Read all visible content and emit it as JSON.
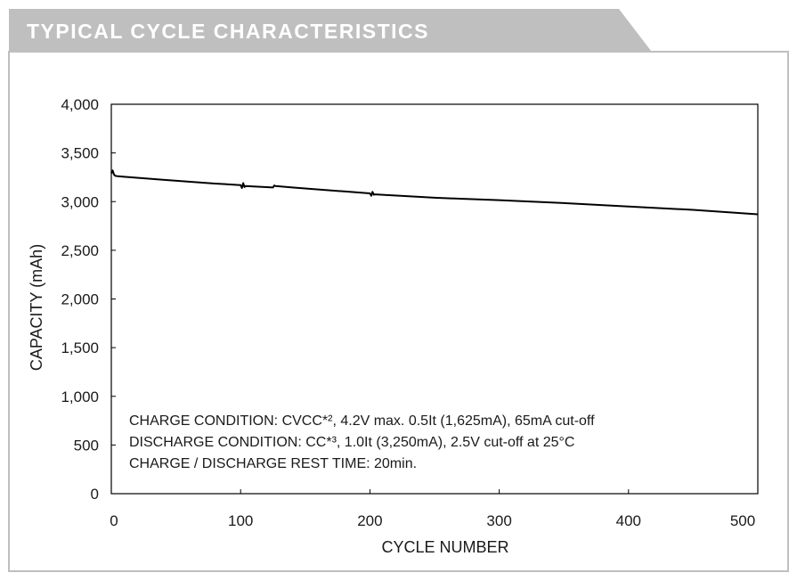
{
  "header": {
    "title": "TYPICAL CYCLE CHARACTERISTICS"
  },
  "colors": {
    "banner": "#bfbfbf",
    "frame": "#bfbfbf",
    "line": "#000000",
    "text": "#1a1a1a"
  },
  "notes": {
    "line1": "CHARGE CONDITION: CVCC*², 4.2V max. 0.5It (1,625mA), 65mA cut-off",
    "line2": "DISCHARGE CONDITION: CC*³, 1.0It (3,250mA), 2.5V cut-off at 25°C",
    "line3": "CHARGE / DISCHARGE REST TIME: 20min."
  },
  "chart_data": {
    "type": "line",
    "title": "TYPICAL CYCLE CHARACTERISTICS",
    "xlabel": "CYCLE NUMBER",
    "ylabel": "CAPACITY (mAh)",
    "xlim": [
      0,
      500
    ],
    "ylim": [
      0,
      4000
    ],
    "x_ticks": [
      0,
      100,
      200,
      300,
      400,
      500
    ],
    "x_tick_labels": [
      "0",
      "100",
      "200",
      "300",
      "400",
      "500"
    ],
    "y_ticks": [
      0,
      500,
      1000,
      1500,
      2000,
      2500,
      3000,
      3500,
      4000
    ],
    "y_tick_labels": [
      "0",
      "500",
      "1,000",
      "1,500",
      "2,000",
      "2,500",
      "3,000",
      "3,500",
      "4,000"
    ],
    "grid": false,
    "series": [
      {
        "x": [
          0,
          1,
          2,
          3,
          5,
          10,
          20,
          40,
          60,
          80,
          100,
          101,
          102,
          103,
          104,
          110,
          125,
          126,
          127,
          140,
          160,
          180,
          200,
          201,
          202,
          203,
          204,
          210,
          230,
          250,
          270,
          300,
          350,
          400,
          450,
          500
        ],
        "values": [
          3290,
          3320,
          3280,
          3265,
          3260,
          3255,
          3245,
          3225,
          3205,
          3185,
          3170,
          3140,
          3190,
          3150,
          3160,
          3155,
          3145,
          3165,
          3160,
          3145,
          3125,
          3105,
          3085,
          3060,
          3100,
          3070,
          3075,
          3070,
          3055,
          3040,
          3030,
          3015,
          2985,
          2950,
          2915,
          2870
        ]
      }
    ]
  }
}
